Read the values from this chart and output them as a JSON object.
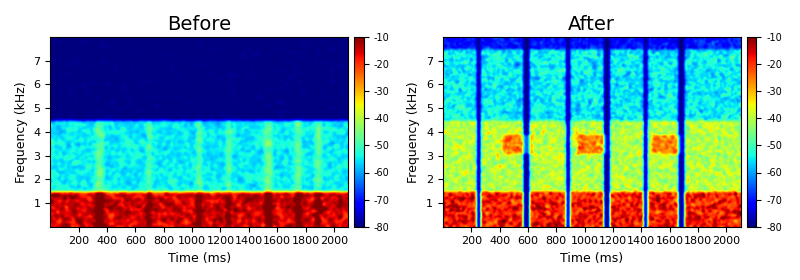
{
  "title_before": "Before",
  "title_after": "After",
  "xlabel": "Time (ms)",
  "ylabel": "Frequency (kHz)",
  "cbar_ticks": [
    -10,
    -20,
    -30,
    -40,
    -50,
    -60,
    -70,
    -80
  ],
  "xlim": [
    0,
    2100
  ],
  "ylim": [
    0,
    8
  ],
  "xticks": [
    200,
    400,
    600,
    800,
    1000,
    1200,
    1400,
    1600,
    1800,
    2000
  ],
  "yticks": [
    1,
    2,
    3,
    4,
    5,
    6,
    7
  ],
  "clim": [
    -80,
    -10
  ],
  "figsize": [
    8.0,
    2.8
  ],
  "dpi": 100,
  "bg_color": "#ffffff",
  "title_fontsize": 14
}
